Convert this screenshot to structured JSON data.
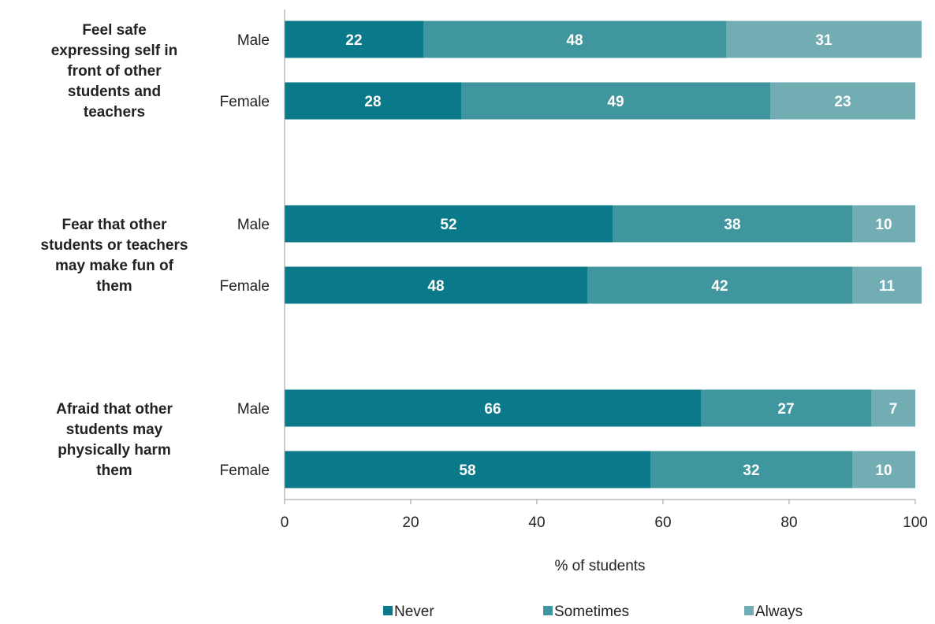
{
  "chart_data": {
    "type": "bar",
    "orientation": "horizontal",
    "stacked": true,
    "xlabel": "% of students",
    "xlim": [
      0,
      100
    ],
    "xticks": [
      0,
      20,
      40,
      60,
      80,
      100
    ],
    "grid": false,
    "legend_position": "bottom",
    "series": [
      {
        "name": "Never",
        "color": "#0a7a8a"
      },
      {
        "name": "Sometimes",
        "color": "#40969e"
      },
      {
        "name": "Always",
        "color": "#72adb4"
      }
    ],
    "groups": [
      {
        "label_lines": [
          "Feel safe",
          "expressing self in",
          "front of other",
          "students and",
          "teachers"
        ],
        "rows": [
          {
            "label": "Male",
            "values": [
              22,
              48,
              31
            ]
          },
          {
            "label": "Female",
            "values": [
              28,
              49,
              23
            ]
          }
        ]
      },
      {
        "label_lines": [
          "Fear that other",
          "students or teachers",
          "may make fun of",
          "them"
        ],
        "rows": [
          {
            "label": "Male",
            "values": [
              52,
              38,
              10
            ]
          },
          {
            "label": "Female",
            "values": [
              48,
              42,
              11
            ]
          }
        ]
      },
      {
        "label_lines": [
          "Afraid that other",
          "students may",
          "physically harm",
          "them"
        ],
        "rows": [
          {
            "label": "Male",
            "values": [
              66,
              27,
              7
            ]
          },
          {
            "label": "Female",
            "values": [
              58,
              32,
              10
            ]
          }
        ]
      }
    ]
  }
}
